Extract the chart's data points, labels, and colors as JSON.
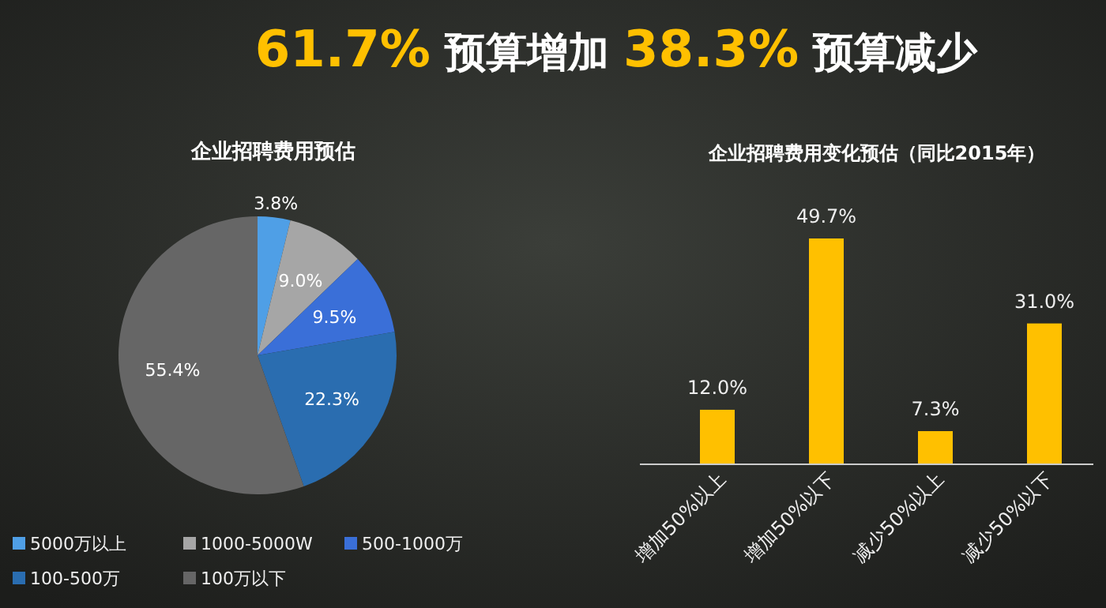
{
  "chart_data": [
    {
      "type": "other",
      "title": "61.7% 预算增加 38.3% 预算减少"
    },
    {
      "type": "pie",
      "title": "企业招聘费用预估",
      "categories": [
        "5000万以上",
        "1000-5000W",
        "500-1000万",
        "100-500万",
        "100万以下"
      ],
      "values": [
        3.8,
        9.0,
        9.5,
        22.3,
        55.4
      ],
      "value_labels": [
        "3.8%",
        "9.0%",
        "9.5%",
        "22.3%",
        "55.4%"
      ],
      "colors": [
        "#4f9fe6",
        "#a6a6a6",
        "#3a6fd8",
        "#2a6db0",
        "#666666"
      ],
      "legend": "bottom"
    },
    {
      "type": "bar",
      "title": "企业招聘费用变化预估（同比2015年）",
      "categories": [
        "增加50%以上",
        "增加50%以下",
        "减少50%以上",
        "减少50%以下"
      ],
      "values": [
        12.0,
        49.7,
        7.3,
        31.0
      ],
      "value_labels": [
        "12.0%",
        "49.7%",
        "7.3%",
        "31.0%"
      ],
      "color": "#ffc000"
    }
  ]
}
